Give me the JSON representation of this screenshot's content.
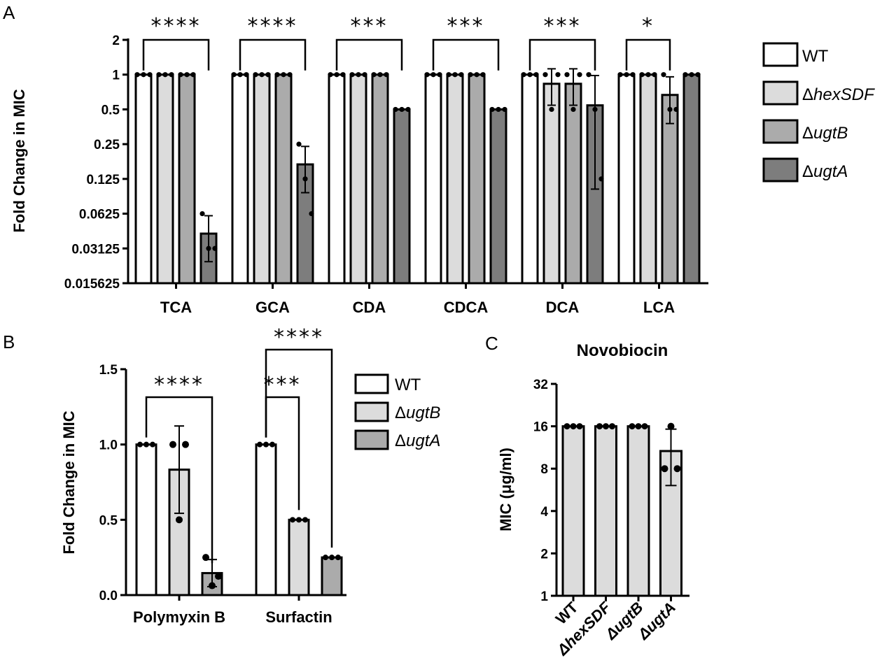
{
  "panel_labels": {
    "a": "A",
    "b": "B",
    "c": "C"
  },
  "colors": {
    "WT": "#ffffff",
    "hexSDF": "#dcdcdc",
    "ugtB": "#ababab",
    "ugtA": "#7d7d7d",
    "stroke": "#000000"
  },
  "chart_data": [
    {
      "panel": "A",
      "type": "bar",
      "ylabel": "Fold Change in MIC",
      "yscale": "log2",
      "ylim": [
        0.015625,
        2
      ],
      "yticks": [
        "0.015625",
        "0.03125",
        "0.0625",
        "0.125",
        "0.25",
        "0.5",
        "1",
        "2"
      ],
      "categories": [
        "TCA",
        "GCA",
        "CDA",
        "CDCA",
        "DCA",
        "LCA"
      ],
      "legend_position": "right",
      "series": [
        {
          "name": "WT",
          "values": [
            1,
            1,
            1,
            1,
            1,
            1
          ],
          "err": [
            0,
            0,
            0,
            0,
            0,
            0
          ]
        },
        {
          "name": "ΔhexSDF",
          "values": [
            1,
            1,
            1,
            1,
            0.833,
            1
          ],
          "err": [
            0,
            0,
            0,
            0,
            0.29,
            0
          ]
        },
        {
          "name": "ΔugtB",
          "values": [
            1,
            1,
            1,
            1,
            0.833,
            0.667
          ],
          "err": [
            0,
            0,
            0,
            0,
            0.29,
            0.29
          ]
        },
        {
          "name": "ΔugtA",
          "values": [
            0.042,
            0.167,
            0.5,
            0.5,
            0.542,
            1
          ],
          "err": [
            0.018,
            0.072,
            0,
            0,
            0.44,
            0
          ]
        }
      ],
      "points": [
        [
          [
            1,
            1,
            1
          ],
          [
            1,
            1,
            1
          ],
          [
            1,
            1,
            1
          ],
          [
            1,
            1,
            1
          ],
          [
            1,
            1,
            1
          ],
          [
            1,
            1,
            1
          ]
        ],
        [
          [
            1,
            1,
            1
          ],
          [
            1,
            1,
            1
          ],
          [
            1,
            1,
            1
          ],
          [
            1,
            1,
            1
          ],
          [
            1,
            0.5,
            1
          ],
          [
            1,
            1,
            1
          ]
        ],
        [
          [
            1,
            1,
            1
          ],
          [
            1,
            1,
            1
          ],
          [
            1,
            1,
            1
          ],
          [
            1,
            1,
            1
          ],
          [
            1,
            0.5,
            1
          ],
          [
            1,
            0.5,
            0.5
          ]
        ],
        [
          [
            0.0625,
            0.03125,
            0.03125
          ],
          [
            0.25,
            0.125,
            0.0625
          ],
          [
            0.5,
            0.5,
            0.5
          ],
          [
            0.5,
            0.5,
            0.5
          ],
          [
            1,
            0.5,
            0.125
          ],
          [
            1,
            1,
            1
          ]
        ]
      ],
      "significance": [
        {
          "category": 0,
          "from": 0,
          "to": 3,
          "label": "****"
        },
        {
          "category": 1,
          "from": 0,
          "to": 3,
          "label": "****"
        },
        {
          "category": 2,
          "from": 0,
          "to": 3,
          "label": "***"
        },
        {
          "category": 3,
          "from": 0,
          "to": 3,
          "label": "***"
        },
        {
          "category": 4,
          "from": 0,
          "to": 3,
          "label": "***"
        },
        {
          "category": 5,
          "from": 0,
          "to": 2,
          "label": "*"
        }
      ]
    },
    {
      "panel": "B",
      "type": "bar",
      "ylabel": "Fold Change in MIC",
      "ylim": [
        0,
        1.5
      ],
      "yticks": [
        "0.0",
        "0.5",
        "1.0",
        "1.5"
      ],
      "categories": [
        "Polymyxin B",
        "Surfactin"
      ],
      "legend_position": "right",
      "series": [
        {
          "name": "WT",
          "values": [
            1,
            1
          ],
          "err": [
            0,
            0
          ]
        },
        {
          "name": "ΔugtB",
          "values": [
            0.833,
            0.5
          ],
          "err": [
            0.29,
            0
          ]
        },
        {
          "name": "ΔugtA",
          "values": [
            0.146,
            0.25
          ],
          "err": [
            0.09,
            0
          ]
        }
      ],
      "points": [
        [
          [
            1,
            1,
            1
          ],
          [
            1,
            1,
            1
          ]
        ],
        [
          [
            1,
            1,
            0.5
          ],
          [
            0.5,
            0.5,
            0.5
          ]
        ],
        [
          [
            0.25,
            0.125,
            0.0625
          ],
          [
            0.25,
            0.25,
            0.25
          ]
        ]
      ],
      "significance": [
        {
          "category": 0,
          "from": 0,
          "to": 2,
          "label": "****"
        },
        {
          "category": 1,
          "from": 0,
          "to": 1,
          "label": "***"
        },
        {
          "category": 1,
          "from": 0,
          "to": 2,
          "label": "****"
        }
      ]
    },
    {
      "panel": "C",
      "type": "bar",
      "title": "Novobiocin",
      "ylabel": "MIC (μg/ml)",
      "yscale": "log2",
      "ylim": [
        1,
        32
      ],
      "yticks": [
        "1",
        "2",
        "4",
        "8",
        "16",
        "32"
      ],
      "categories": [
        "WT",
        "ΔhexSDF",
        "ΔugtB",
        "ΔugtA"
      ],
      "values": [
        16,
        16,
        16,
        10.67
      ],
      "err": [
        0,
        0,
        0,
        4.6
      ],
      "points": [
        [
          16,
          16,
          16
        ],
        [
          16,
          16,
          16
        ],
        [
          16,
          16,
          16
        ],
        [
          16,
          8,
          8
        ]
      ]
    }
  ],
  "legend_a": [
    {
      "prefix": "",
      "name": "WT"
    },
    {
      "prefix": "Δ",
      "name": "hexSDF"
    },
    {
      "prefix": "Δ",
      "name": "ugtB"
    },
    {
      "prefix": "Δ",
      "name": "ugtA"
    }
  ],
  "legend_b": [
    {
      "prefix": "",
      "name": "WT"
    },
    {
      "prefix": "Δ",
      "name": "ugtB"
    },
    {
      "prefix": "Δ",
      "name": "ugtA"
    }
  ]
}
